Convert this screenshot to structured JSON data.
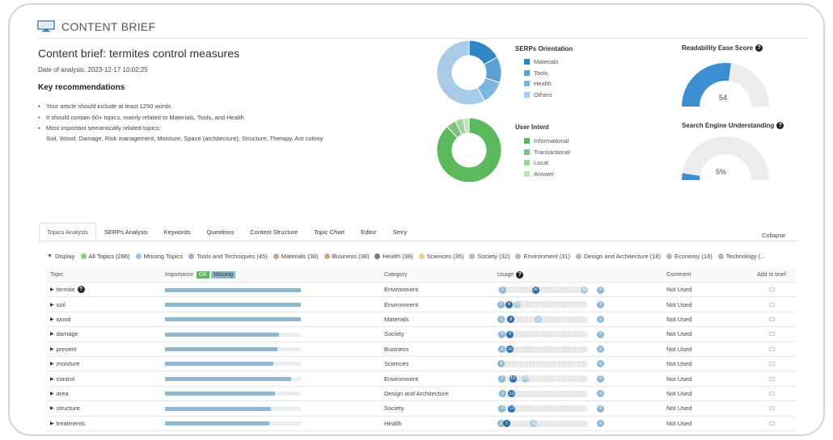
{
  "header": {
    "title": "CONTENT BRIEF"
  },
  "brief": {
    "title": "Content brief: termites control measures",
    "date": "Date of analysis: 2023-12-17 10:02:25",
    "key_recommendations_title": "Key recommendations",
    "recommendations": [
      "Your article should include at least 1250 words",
      "It should contain 60+ topics, mainly related to Materials, Tools, and Health",
      "Most important semantically related topics:"
    ],
    "related_topics": "Soil, Wood, Damage, Risk management, Moisture, Space (architecture), Structure, Therapy, Ant colony"
  },
  "serps": {
    "title": "SERPs Orientation",
    "legend": [
      {
        "label": "Materials",
        "color": "#2f86c6"
      },
      {
        "label": "Tools",
        "color": "#5aa0d4"
      },
      {
        "label": "Health",
        "color": "#7db5de"
      },
      {
        "label": "Others",
        "color": "#a8cbe8"
      }
    ],
    "values": [
      0.17,
      0.13,
      0.12,
      0.58
    ]
  },
  "intent": {
    "title": "User Intent",
    "legend": [
      {
        "label": "Informational",
        "color": "#5cb85c"
      },
      {
        "label": "Transactional",
        "color": "#7ec47e"
      },
      {
        "label": "Local",
        "color": "#9fd49f"
      },
      {
        "label": "Answer",
        "color": "#c2e4c2"
      }
    ],
    "values": [
      0.88,
      0.05,
      0.04,
      0.03
    ]
  },
  "readability": {
    "title": "Readability Ease Score",
    "value": "54",
    "fraction": 0.54,
    "color": "#3b8fd0"
  },
  "seu": {
    "title": "Search Engine Understanding",
    "value": "5%",
    "fraction": 0.05,
    "color": "#3b8fd0"
  },
  "tabs": [
    "Topics Analysis",
    "SERPs Analysis",
    "Keywords",
    "Questions",
    "Content Structure",
    "Topic Chart",
    "Editor",
    "Smry"
  ],
  "collapse_label": "Collapse",
  "filters": [
    {
      "label": "Display",
      "color": ""
    },
    {
      "label": "All Topics (286)",
      "color": "#8cc98c"
    },
    {
      "label": "Missing Topics",
      "color": "#9ec3dc"
    },
    {
      "label": "Tools and Techniques (45)",
      "color": "#b7a6e0"
    },
    {
      "label": "Materials (38)",
      "color": "#c9a98a"
    },
    {
      "label": "Business (38)",
      "color": "#d4a584"
    },
    {
      "label": "Health (38)",
      "color": "#7a7a7a"
    },
    {
      "label": "Sciences (35)",
      "color": "#f2c894"
    },
    {
      "label": "Society (32)",
      "color": "#b8b8b8"
    },
    {
      "label": "Environment (31)",
      "color": "#b8b8b8"
    },
    {
      "label": "Design and Architecture (18)",
      "color": "#b8b8b8"
    },
    {
      "label": "Economy (18)",
      "color": "#b8b8b8"
    },
    {
      "label": "Technology (...",
      "color": "#b8b8b8"
    }
  ],
  "table": {
    "headers": {
      "topic": "Topic",
      "importance": "Importance",
      "ok": "OK",
      "missing": "Missing",
      "category": "Category",
      "usage": "Usage",
      "comment": "Comment",
      "add": "Add to brief"
    },
    "rows": [
      {
        "topic": "termite",
        "info": true,
        "importance": 1.0,
        "category": "Environment",
        "usage": [
          "5",
          "26",
          "66",
          "0"
        ],
        "usage_pos": [
          0.02,
          0.38,
          0.92,
          1.1
        ],
        "comment": "Not Used"
      },
      {
        "topic": "soil",
        "importance": 1.0,
        "category": "Environment",
        "usage": [
          "5",
          "8",
          "24",
          "0"
        ],
        "usage_pos": [
          0.0,
          0.09,
          0.18,
          1.1
        ],
        "comment": "Not Used"
      },
      {
        "topic": "wood",
        "importance": 1.0,
        "category": "Materials",
        "usage": [
          "3",
          "9",
          "23",
          "0"
        ],
        "usage_pos": [
          0.0,
          0.11,
          0.41,
          1.1
        ],
        "comment": "Not Used"
      },
      {
        "topic": "damage",
        "importance": 0.84,
        "category": "Society",
        "usage": [
          "4",
          "9",
          "0"
        ],
        "usage_pos": [
          0.01,
          0.1,
          1.1
        ],
        "comment": "Not Used"
      },
      {
        "topic": "prevent",
        "importance": 0.83,
        "category": "Business",
        "usage": [
          "4",
          "10",
          "0"
        ],
        "usage_pos": [
          0.01,
          0.1,
          1.1
        ],
        "comment": "Not Used"
      },
      {
        "topic": "moisture",
        "importance": 0.8,
        "category": "Sciences",
        "usage": [
          "3",
          "0"
        ],
        "usage_pos": [
          0.0,
          1.1
        ],
        "comment": "Not Used"
      },
      {
        "topic": "control",
        "importance": 0.93,
        "category": "Environment",
        "usage": [
          "2",
          "10",
          "20",
          "0"
        ],
        "usage_pos": [
          0.01,
          0.13,
          0.27,
          1.1
        ],
        "comment": "Not Used"
      },
      {
        "topic": "area",
        "importance": 0.81,
        "category": "Design and Architecture",
        "usage": [
          "5",
          "13",
          "0"
        ],
        "usage_pos": [
          0.02,
          0.12,
          1.1
        ],
        "comment": "Not Used"
      },
      {
        "topic": "structure",
        "importance": 0.78,
        "category": "Society",
        "usage": [
          "4",
          "13",
          "0"
        ],
        "usage_pos": [
          0.01,
          0.12,
          1.1
        ],
        "comment": "Not Used"
      },
      {
        "topic": "treatments",
        "importance": 0.77,
        "category": "Health",
        "usage": [
          "3",
          "7",
          "29",
          "0"
        ],
        "usage_pos": [
          0.0,
          0.06,
          0.36,
          1.1
        ],
        "comment": "Not Used"
      }
    ]
  }
}
